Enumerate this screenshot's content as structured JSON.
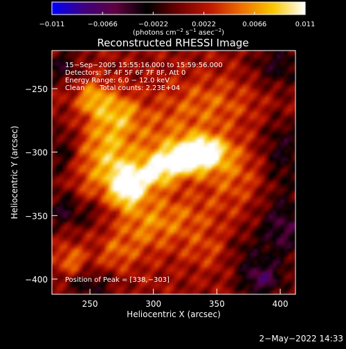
{
  "chart_data": {
    "type": "heatmap",
    "title": "Reconstructed RHESSI Image",
    "xlabel": "Heliocentric X (arcsec)",
    "ylabel": "Heliocentric Y (arcsec)",
    "xlim": [
      220,
      412
    ],
    "ylim": [
      -412,
      -220
    ],
    "x_ticks": [
      250,
      300,
      350,
      400
    ],
    "y_ticks": [
      -250,
      -300,
      -350,
      -400
    ],
    "colorbar": {
      "range": [
        -0.011,
        0.011
      ],
      "ticks": [
        -0.011,
        -0.0066,
        -0.0022,
        0.0022,
        0.0066,
        0.011
      ],
      "tick_labels": [
        "−0.011",
        "−0.0066",
        "−0.0022",
        "0.0022",
        "0.0066",
        "0.011"
      ],
      "unit_main": "(photons cm",
      "unit_sup1": "−2",
      "unit_mid1": " s",
      "unit_sup2": "−1",
      "unit_mid2": " asec",
      "unit_sup3": "−2",
      "unit_end": ")"
    },
    "annotations": {
      "time_range": "15−Sep−2005 15:55:16.000 to 15:59:56.000",
      "detectors": "Detectors: 3F 4F 5F 6F 7F 8F, Att 0",
      "energy_range": "Energy Range: 6.0 − 12.0 keV",
      "method": "Clean",
      "total_counts": "Total counts: 2.23E+04",
      "peak_position": "Position of Peak = [338,−303]"
    },
    "peak": {
      "x": 338,
      "y": -303
    },
    "emission_sources": [
      {
        "x": 338,
        "y": -300,
        "sx": 14,
        "sy": 9,
        "amp": 0.011
      },
      {
        "x": 318,
        "y": -308,
        "sx": 14,
        "sy": 8,
        "amp": 0.0075
      },
      {
        "x": 298,
        "y": -318,
        "sx": 13,
        "sy": 9,
        "amp": 0.0068
      },
      {
        "x": 280,
        "y": -330,
        "sx": 9,
        "sy": 9,
        "amp": 0.0082
      },
      {
        "x": 272,
        "y": -318,
        "sx": 10,
        "sy": 14,
        "amp": 0.005
      },
      {
        "x": 262,
        "y": -288,
        "sx": 12,
        "sy": 22,
        "amp": 0.0042
      },
      {
        "x": 252,
        "y": -258,
        "sx": 9,
        "sy": 9,
        "amp": 0.0055
      },
      {
        "x": 275,
        "y": -268,
        "sx": 10,
        "sy": 10,
        "amp": 0.004
      },
      {
        "x": 300,
        "y": -290,
        "sx": 26,
        "sy": 18,
        "amp": 0.0035
      },
      {
        "x": 345,
        "y": -262,
        "sx": 26,
        "sy": 16,
        "amp": 0.0035
      },
      {
        "x": 362,
        "y": -318,
        "sx": 18,
        "sy": 18,
        "amp": 0.0035
      },
      {
        "x": 318,
        "y": -352,
        "sx": 24,
        "sy": 14,
        "amp": 0.0035
      },
      {
        "x": 290,
        "y": -360,
        "sx": 16,
        "sy": 18,
        "amp": 0.003
      },
      {
        "x": 270,
        "y": -380,
        "sx": 10,
        "sy": 10,
        "amp": 0.003
      },
      {
        "x": 235,
        "y": -385,
        "sx": 8,
        "sy": 8,
        "amp": 0.0045
      },
      {
        "x": 345,
        "y": -378,
        "sx": 16,
        "sy": 10,
        "amp": 0.0025
      },
      {
        "x": 248,
        "y": -318,
        "sx": 10,
        "sy": 18,
        "amp": 0.0025
      }
    ],
    "negative_regions": [
      {
        "x": 228,
        "y": -232,
        "sx": 9,
        "sy": 9,
        "amp": -0.0045
      },
      {
        "x": 398,
        "y": -232,
        "sx": 14,
        "sy": 12,
        "amp": -0.0045
      },
      {
        "x": 402,
        "y": -300,
        "sx": 12,
        "sy": 20,
        "amp": -0.0045
      },
      {
        "x": 402,
        "y": -360,
        "sx": 14,
        "sy": 18,
        "amp": -0.006
      },
      {
        "x": 385,
        "y": -400,
        "sx": 12,
        "sy": 10,
        "amp": -0.007
      },
      {
        "x": 228,
        "y": -300,
        "sx": 8,
        "sy": 14,
        "amp": -0.0035
      },
      {
        "x": 228,
        "y": -345,
        "sx": 8,
        "sy": 10,
        "amp": -0.0045
      },
      {
        "x": 248,
        "y": -348,
        "sx": 10,
        "sy": 8,
        "amp": -0.003
      },
      {
        "x": 250,
        "y": -405,
        "sx": 14,
        "sy": 8,
        "amp": -0.004
      },
      {
        "x": 370,
        "y": -378,
        "sx": 12,
        "sy": 10,
        "amp": -0.003
      }
    ],
    "grid": false
  },
  "footer": {
    "date": "2−May−2022 14:33"
  },
  "colors": {
    "background": "#000000",
    "text": "#ffffff",
    "colormap": [
      "#0000ff",
      "#400080",
      "#600040",
      "#000000",
      "#700000",
      "#c01800",
      "#f07000",
      "#f8c800",
      "#ffffff"
    ]
  }
}
